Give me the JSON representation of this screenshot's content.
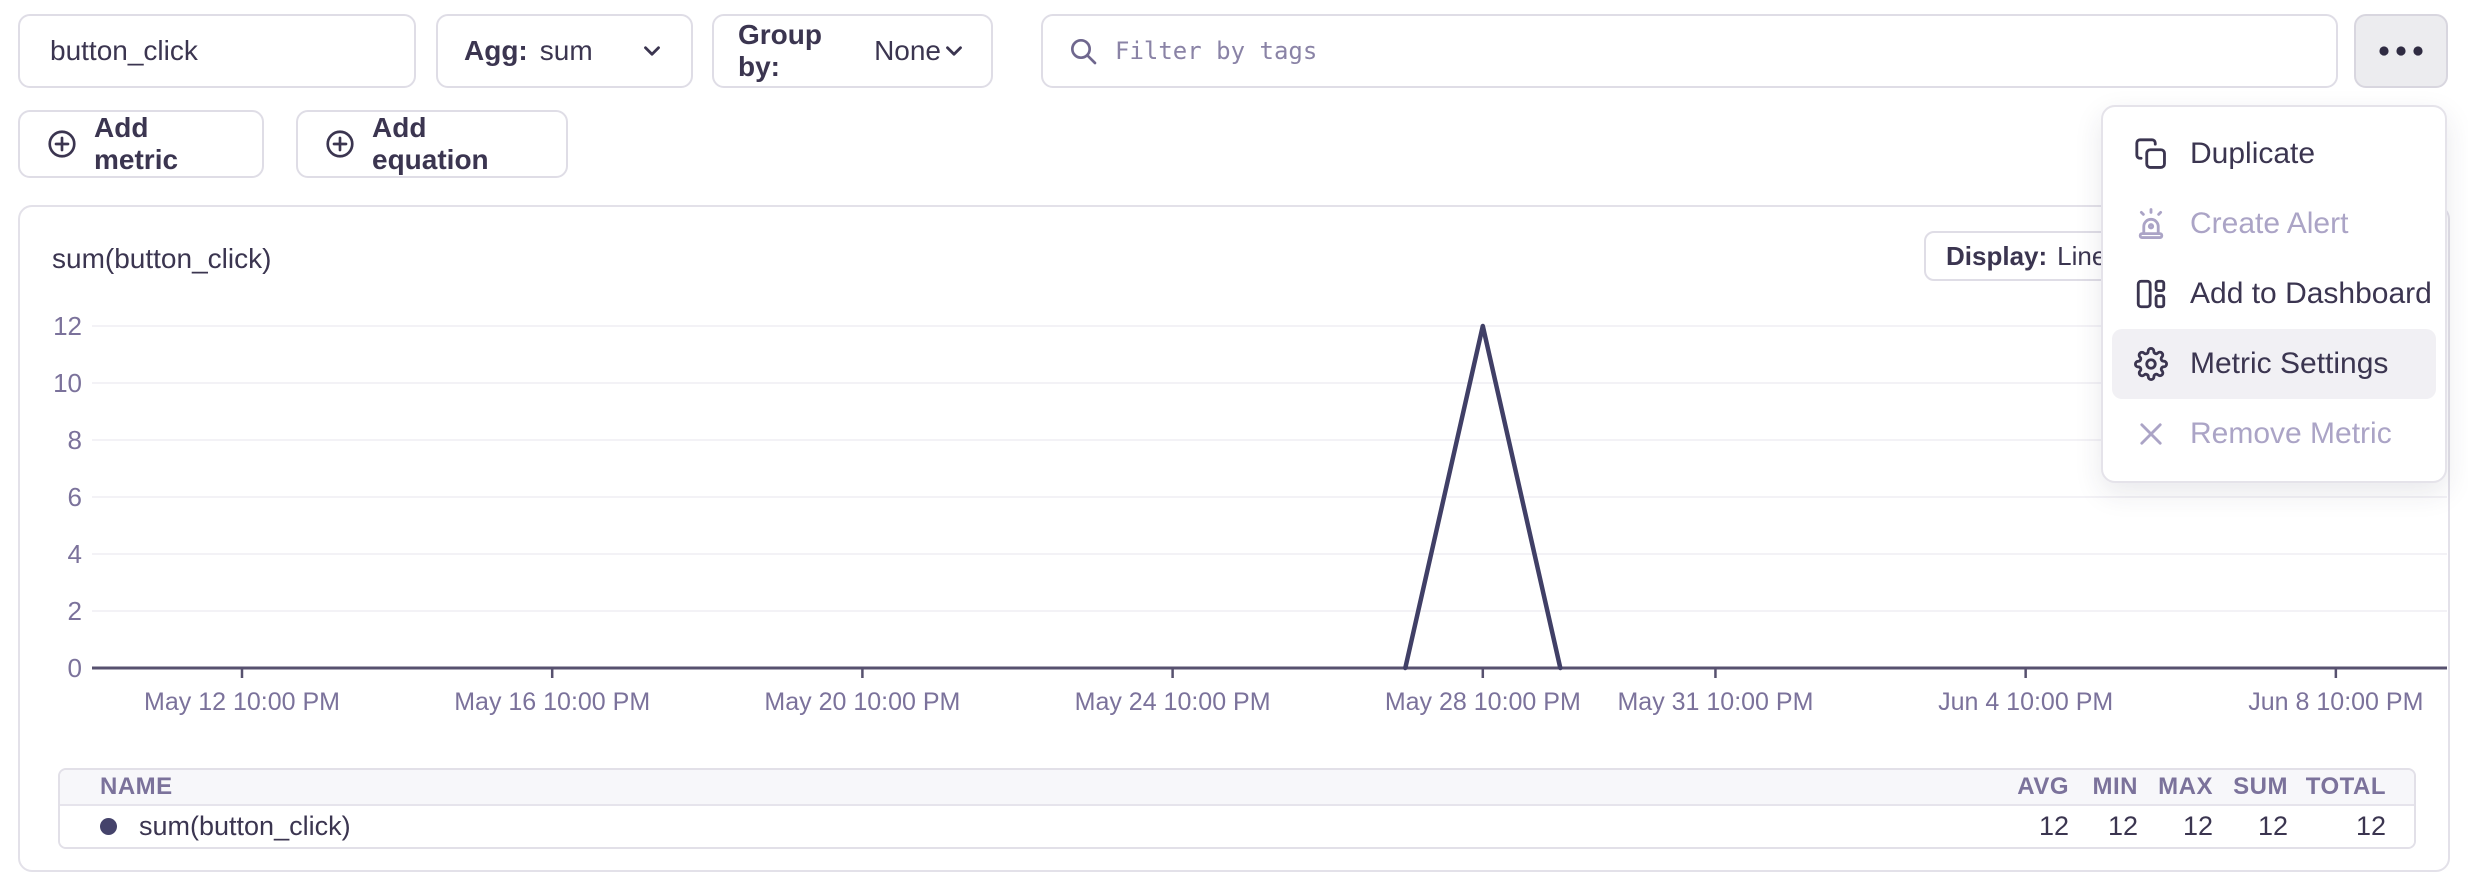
{
  "toolbar": {
    "metric_input": {
      "value": "button_click"
    },
    "agg": {
      "label": "Agg:",
      "value": "sum"
    },
    "group_by": {
      "label": "Group by:",
      "value": "None"
    },
    "filter": {
      "placeholder": "Filter by tags"
    },
    "add_metric_label": "Add metric",
    "add_equation_label": "Add equation"
  },
  "menu": {
    "items": [
      {
        "label": "Duplicate",
        "icon": "duplicate-icon",
        "disabled": false,
        "highlighted": false
      },
      {
        "label": "Create Alert",
        "icon": "alert-icon",
        "disabled": true,
        "highlighted": false
      },
      {
        "label": "Add to Dashboard",
        "icon": "dashboard-icon",
        "disabled": false,
        "highlighted": false
      },
      {
        "label": "Metric Settings",
        "icon": "gear-icon",
        "disabled": false,
        "highlighted": true
      },
      {
        "label": "Remove Metric",
        "icon": "x-icon",
        "disabled": true,
        "highlighted": false
      }
    ]
  },
  "panel": {
    "title": "sum(button_click)",
    "display": {
      "label": "Display:",
      "value": "Line"
    }
  },
  "chart_data": {
    "type": "line",
    "title": "sum(button_click)",
    "ylim": [
      0,
      12
    ],
    "y_ticks": [
      0,
      2,
      4,
      6,
      8,
      10,
      12
    ],
    "x_ticks": [
      {
        "label": "May 12 10:00 PM",
        "day": 0
      },
      {
        "label": "May 16 10:00 PM",
        "day": 4
      },
      {
        "label": "May 20 10:00 PM",
        "day": 8
      },
      {
        "label": "May 24 10:00 PM",
        "day": 12
      },
      {
        "label": "May 28 10:00 PM",
        "day": 16
      },
      {
        "label": "May 31 10:00 PM",
        "day": 19
      },
      {
        "label": "Jun 4 10:00 PM",
        "day": 23
      },
      {
        "label": "Jun 8 10:00 PM",
        "day": 27
      }
    ],
    "grid": "horizontal",
    "legend_position": "bottom-table",
    "series": [
      {
        "name": "sum(button_click)",
        "color": "#403f66",
        "points": [
          {
            "label": "May 27 10:00 PM",
            "day": 15,
            "value": 0
          },
          {
            "label": "May 28 10:00 PM",
            "day": 16,
            "value": 12
          },
          {
            "label": "May 29 10:00 PM",
            "day": 17,
            "value": 0
          }
        ]
      }
    ]
  },
  "summary_table": {
    "name_column": "NAME",
    "value_columns": [
      "AVG",
      "MIN",
      "MAX",
      "SUM",
      "TOTAL"
    ],
    "rows": [
      {
        "name": "sum(button_click)",
        "color": "#45436b",
        "values": [
          12,
          12,
          12,
          12,
          12
        ]
      }
    ]
  },
  "colors": {
    "text_dark": "#3b3550",
    "text_muted": "#7b729b",
    "disabled": "#aba4c6",
    "border": "#dfdde6",
    "line_series": "#403f66",
    "axis_line": "#57516f",
    "grid_line": "#f3f2f6",
    "menu_highlight": "#f1f0f4",
    "table_header_bg": "#f7f7fa"
  }
}
